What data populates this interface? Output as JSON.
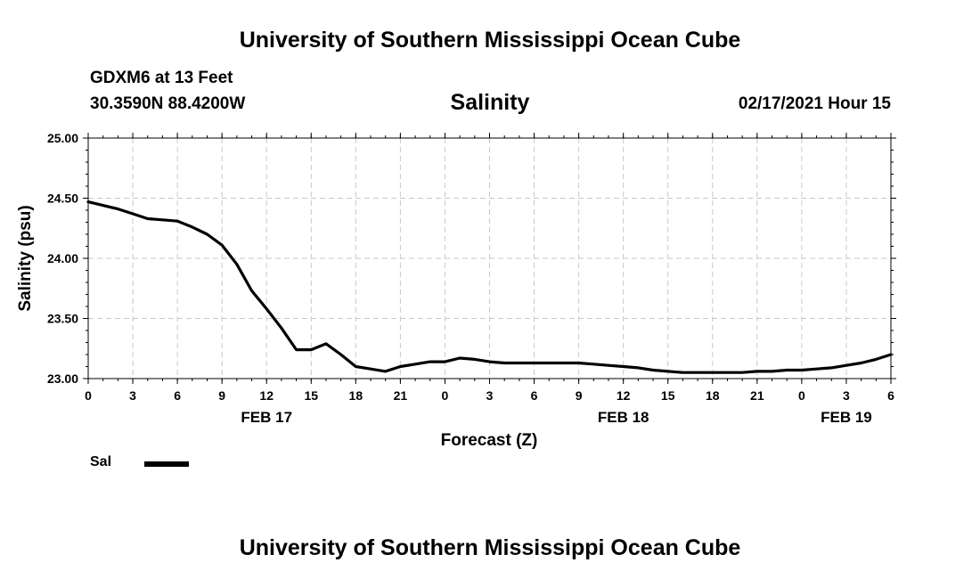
{
  "header": {
    "top_title": "University of Southern Mississippi Ocean Cube",
    "station": "GDXM6 at 13 Feet",
    "coords": "30.3590N 88.4200W",
    "timestamp": "02/17/2021 Hour 15",
    "bottom_title": "University of Southern Mississippi Ocean Cube"
  },
  "chart_data": {
    "type": "line",
    "title": "Salinity",
    "xlabel": "Forecast (Z)",
    "ylabel": "Salinity (psu)",
    "ylim": [
      23.0,
      25.0
    ],
    "xlim": [
      0,
      54
    ],
    "yticks": [
      "23.00",
      "23.50",
      "24.00",
      "24.50",
      "25.00"
    ],
    "x_tick_values": [
      0,
      3,
      6,
      9,
      12,
      15,
      18,
      21,
      24,
      27,
      30,
      33,
      36,
      39,
      42,
      45,
      48,
      51,
      54
    ],
    "x_tick_labels": [
      "0",
      "3",
      "6",
      "9",
      "12",
      "15",
      "18",
      "21",
      "0",
      "3",
      "6",
      "9",
      "12",
      "15",
      "18",
      "21",
      "0",
      "3",
      "6"
    ],
    "date_labels": [
      {
        "x": 12,
        "label": "FEB 17"
      },
      {
        "x": 36,
        "label": "FEB 18"
      },
      {
        "x": 51,
        "label": "FEB 19"
      }
    ],
    "grid": true,
    "series": [
      {
        "name": "Sal",
        "color": "#000000",
        "x": [
          0,
          1,
          2,
          3,
          4,
          5,
          6,
          7,
          8,
          9,
          10,
          11,
          12,
          13,
          14,
          15,
          16,
          17,
          18,
          19,
          20,
          21,
          22,
          23,
          24,
          25,
          26,
          27,
          28,
          29,
          30,
          31,
          32,
          33,
          34,
          35,
          36,
          37,
          38,
          39,
          40,
          41,
          42,
          43,
          44,
          45,
          46,
          47,
          48,
          49,
          50,
          51,
          52,
          53,
          54
        ],
        "values": [
          24.47,
          24.44,
          24.41,
          24.37,
          24.33,
          24.32,
          24.31,
          24.26,
          24.2,
          24.11,
          23.95,
          23.73,
          23.58,
          23.42,
          23.24,
          23.24,
          23.29,
          23.2,
          23.1,
          23.08,
          23.06,
          23.1,
          23.12,
          23.14,
          23.14,
          23.17,
          23.16,
          23.14,
          23.13,
          23.13,
          23.13,
          23.13,
          23.13,
          23.13,
          23.12,
          23.11,
          23.1,
          23.09,
          23.07,
          23.06,
          23.05,
          23.05,
          23.05,
          23.05,
          23.05,
          23.06,
          23.06,
          23.07,
          23.07,
          23.08,
          23.09,
          23.11,
          23.13,
          23.16,
          23.2
        ]
      }
    ],
    "legend": {
      "label": "Sal",
      "position": "bottom-left"
    }
  }
}
